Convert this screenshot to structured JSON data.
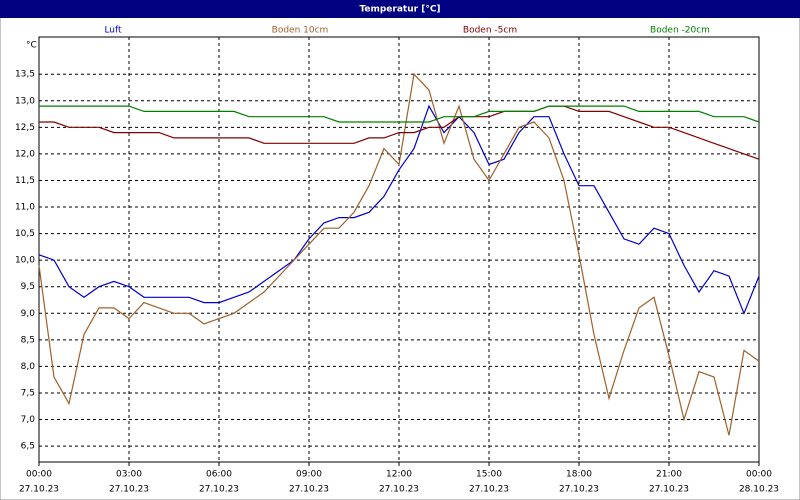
{
  "chart_data": {
    "type": "line",
    "title": "Temperatur [°C]",
    "ylabel": "°C",
    "x": [
      0,
      0.5,
      1,
      1.5,
      2,
      2.5,
      3,
      3.5,
      4,
      4.5,
      5,
      5.5,
      6,
      6.5,
      7,
      7.5,
      8,
      8.5,
      9,
      9.5,
      10,
      10.5,
      11,
      11.5,
      12,
      12.5,
      13,
      13.5,
      14,
      14.5,
      15,
      15.5,
      16,
      16.5,
      17,
      17.5,
      18,
      18.5,
      19,
      19.5,
      20,
      20.5,
      21,
      21.5,
      22,
      22.5,
      23,
      23.5,
      24
    ],
    "series": [
      {
        "name": "Luft",
        "color": "#0000cc",
        "values": [
          10.1,
          10.0,
          9.5,
          9.3,
          9.5,
          9.6,
          9.5,
          9.3,
          9.3,
          9.3,
          9.3,
          9.2,
          9.2,
          9.3,
          9.4,
          9.6,
          9.8,
          10.0,
          10.4,
          10.7,
          10.8,
          10.8,
          10.9,
          11.2,
          11.7,
          12.1,
          12.9,
          12.4,
          12.7,
          12.4,
          11.8,
          11.9,
          12.4,
          12.7,
          12.7,
          12.0,
          11.4,
          11.4,
          10.9,
          10.4,
          10.3,
          10.6,
          10.5,
          9.9,
          9.4,
          9.8,
          9.7,
          9.0,
          9.7
        ]
      },
      {
        "name": "Boden 10cm",
        "color": "#a0602a",
        "values": [
          9.9,
          7.8,
          7.3,
          8.6,
          9.1,
          9.1,
          8.9,
          9.2,
          9.1,
          9.0,
          9.0,
          8.8,
          8.9,
          9.0,
          9.2,
          9.4,
          9.7,
          10.0,
          10.3,
          10.6,
          10.6,
          10.9,
          11.4,
          12.1,
          11.8,
          13.5,
          13.2,
          12.2,
          12.9,
          11.9,
          11.5,
          12.0,
          12.5,
          12.6,
          12.3,
          11.5,
          10.1,
          8.6,
          7.4,
          8.3,
          9.1,
          9.3,
          8.2,
          7.0,
          7.9,
          7.8,
          6.7,
          8.3,
          8.1
        ]
      },
      {
        "name": "Boden -5cm",
        "color": "#800000",
        "values": [
          12.6,
          12.6,
          12.5,
          12.5,
          12.5,
          12.4,
          12.4,
          12.4,
          12.4,
          12.3,
          12.3,
          12.3,
          12.3,
          12.3,
          12.3,
          12.2,
          12.2,
          12.2,
          12.2,
          12.2,
          12.2,
          12.2,
          12.3,
          12.3,
          12.4,
          12.4,
          12.5,
          12.5,
          12.7,
          12.7,
          12.7,
          12.8,
          12.8,
          12.8,
          12.9,
          12.9,
          12.8,
          12.8,
          12.8,
          12.7,
          12.6,
          12.5,
          12.5,
          12.4,
          12.3,
          12.2,
          12.1,
          12.0,
          11.9
        ]
      },
      {
        "name": "Boden -20cm",
        "color": "#008000",
        "values": [
          12.9,
          12.9,
          12.9,
          12.9,
          12.9,
          12.9,
          12.9,
          12.8,
          12.8,
          12.8,
          12.8,
          12.8,
          12.8,
          12.8,
          12.7,
          12.7,
          12.7,
          12.7,
          12.7,
          12.7,
          12.6,
          12.6,
          12.6,
          12.6,
          12.6,
          12.6,
          12.6,
          12.7,
          12.7,
          12.7,
          12.8,
          12.8,
          12.8,
          12.8,
          12.9,
          12.9,
          12.9,
          12.9,
          12.9,
          12.9,
          12.8,
          12.8,
          12.8,
          12.8,
          12.8,
          12.7,
          12.7,
          12.7,
          12.6
        ]
      }
    ],
    "xlim": [
      0,
      24
    ],
    "xticks": [
      {
        "value": 0,
        "label": "00:00",
        "date": "27.10.23"
      },
      {
        "value": 3,
        "label": "03:00",
        "date": "27.10.23"
      },
      {
        "value": 6,
        "label": "06:00",
        "date": "27.10.23"
      },
      {
        "value": 9,
        "label": "09:00",
        "date": "27.10.23"
      },
      {
        "value": 12,
        "label": "12:00",
        "date": "27.10.23"
      },
      {
        "value": 15,
        "label": "15:00",
        "date": "27.10.23"
      },
      {
        "value": 18,
        "label": "18:00",
        "date": "27.10.23"
      },
      {
        "value": 21,
        "label": "21:00",
        "date": "27.10.23"
      },
      {
        "value": 24,
        "label": "00:00",
        "date": "28.10.23"
      }
    ],
    "ylim": [
      6.2,
      14.2
    ],
    "yticks": [
      {
        "value": 6.5,
        "label": "6,5"
      },
      {
        "value": 7,
        "label": "7,0"
      },
      {
        "value": 7.5,
        "label": "7,5"
      },
      {
        "value": 8,
        "label": "8,0"
      },
      {
        "value": 8.5,
        "label": "8,5"
      },
      {
        "value": 9,
        "label": "9,0"
      },
      {
        "value": 9.5,
        "label": "9,5"
      },
      {
        "value": 10,
        "label": "10,0"
      },
      {
        "value": 10.5,
        "label": "10,5"
      },
      {
        "value": 11,
        "label": "11,0"
      },
      {
        "value": 11.5,
        "label": "11,5"
      },
      {
        "value": 12,
        "label": "12,0"
      },
      {
        "value": 12.5,
        "label": "12,5"
      },
      {
        "value": 13,
        "label": "13,0"
      },
      {
        "value": 13.5,
        "label": "13,5"
      }
    ],
    "grid": true
  }
}
